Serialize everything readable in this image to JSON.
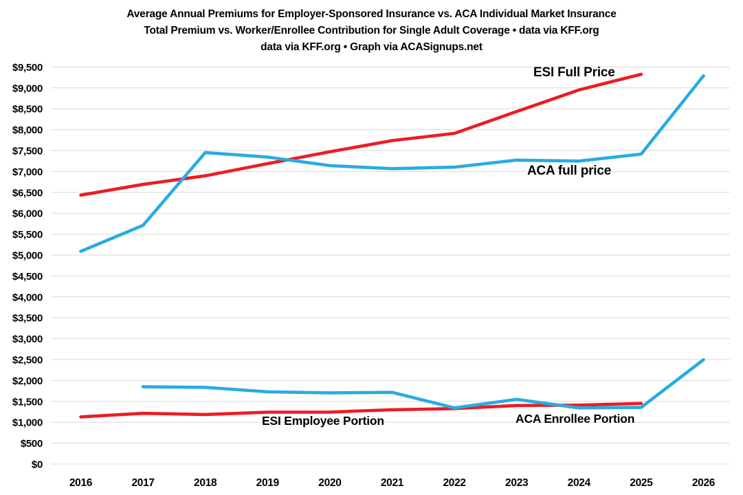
{
  "title": {
    "line1": "Average Annual Premiums for Employer-Sponsored Insurance vs. ACA Individual Market Insurance",
    "line2": "Total Premium vs. Worker/Enrollee Contribution for Single Adult Coverage • data via KFF.org",
    "line3": "data via KFF.org • Graph via ACASignups.net"
  },
  "colors": {
    "esi_red": "#ec1c24",
    "aca_blue": "#29abe2",
    "gridline": "#d9d9d9",
    "text": "#000000",
    "background": "#ffffff"
  },
  "chart_data": {
    "type": "line",
    "x_years": [
      2016,
      2017,
      2018,
      2019,
      2020,
      2021,
      2022,
      2023,
      2024,
      2025,
      2026
    ],
    "ylim": [
      0,
      9500
    ],
    "ytick_step": 500,
    "ytick_prefix": "$",
    "grid": true,
    "legend_position": "inline-labels",
    "series": [
      {
        "name": "ESI Full Price",
        "color": "#ec1c24",
        "years": [
          2016,
          2017,
          2018,
          2019,
          2020,
          2021,
          2022,
          2023,
          2024,
          2025
        ],
        "values": [
          6435,
          6690,
          6896,
          7188,
          7470,
          7739,
          7911,
          8435,
          8951,
          9325
        ]
      },
      {
        "name": "ACA full price",
        "color": "#29abe2",
        "years": [
          2016,
          2017,
          2018,
          2019,
          2020,
          2021,
          2022,
          2023,
          2024,
          2025,
          2026
        ],
        "values": [
          5088,
          5712,
          7452,
          7344,
          7140,
          7068,
          7104,
          7272,
          7248,
          7416,
          9288
        ]
      },
      {
        "name": "ESI Employee Portion",
        "color": "#ec1c24",
        "years": [
          2016,
          2017,
          2018,
          2019,
          2020,
          2021,
          2022,
          2023,
          2024,
          2025
        ],
        "values": [
          1129,
          1213,
          1186,
          1242,
          1243,
          1299,
          1327,
          1401,
          1410,
          1450
        ]
      },
      {
        "name": "ACA Enrollee Portion",
        "color": "#29abe2",
        "years": [
          2017,
          2018,
          2019,
          2020,
          2021,
          2022,
          2023,
          2024,
          2025,
          2026
        ],
        "values": [
          1848,
          1836,
          1728,
          1704,
          1716,
          1344,
          1548,
          1344,
          1356,
          2496
        ]
      }
    ]
  }
}
